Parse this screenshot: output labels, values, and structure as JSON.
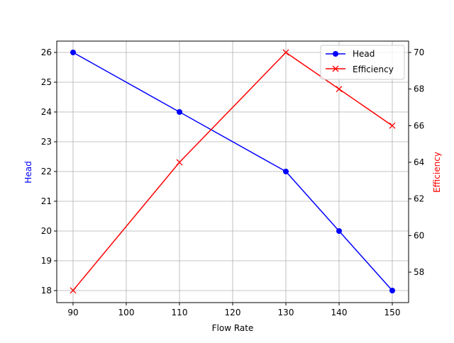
{
  "chart_data": {
    "type": "line",
    "title": "",
    "xlabel": "Flow Rate",
    "ylabel": "Head",
    "y2label": "Efficiency",
    "x": [
      90,
      110,
      130,
      140,
      150
    ],
    "xlim": [
      87,
      153
    ],
    "ylim": [
      17.6,
      26.4
    ],
    "y2lim": [
      56.5,
      70.6
    ],
    "xticks": [
      90,
      100,
      110,
      120,
      130,
      140,
      150
    ],
    "yticks": [
      18,
      19,
      20,
      21,
      22,
      23,
      24,
      25,
      26
    ],
    "y2ticks": [
      58,
      60,
      62,
      64,
      66,
      68,
      70
    ],
    "grid": true,
    "legend_position": "upper right",
    "series": [
      {
        "name": "Head",
        "axis": "left",
        "color": "#0000ff",
        "marker": "circle",
        "values": [
          26,
          24,
          22,
          20,
          18
        ]
      },
      {
        "name": "Efficiency",
        "axis": "right",
        "color": "#ff0000",
        "marker": "x",
        "values": [
          57,
          64,
          70,
          68,
          66
        ]
      }
    ]
  }
}
